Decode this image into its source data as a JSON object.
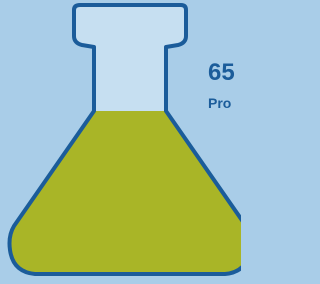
{
  "stat": {
    "value": "65",
    "label": "Pro"
  }
}
